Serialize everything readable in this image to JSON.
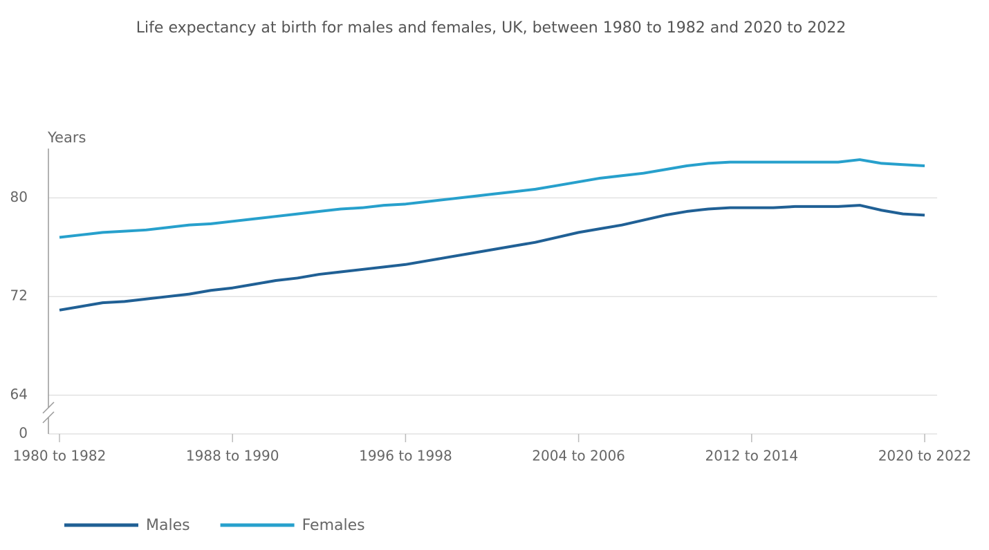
{
  "chart_data": {
    "type": "line",
    "title": "Life expectancy at birth for males and females, UK, between 1980 to 1982 and 2020 to 2022",
    "ylabel": "Years",
    "categories": [
      "1980 to 1982",
      null,
      null,
      null,
      null,
      null,
      null,
      null,
      "1988 to 1990",
      null,
      null,
      null,
      null,
      null,
      null,
      null,
      "1996 to 1998",
      null,
      null,
      null,
      null,
      null,
      null,
      null,
      "2004 to 2006",
      null,
      null,
      null,
      null,
      null,
      null,
      null,
      "2012 to 2014",
      null,
      null,
      null,
      null,
      null,
      null,
      null,
      "2020 to 2022"
    ],
    "series": [
      {
        "name": "Males",
        "color": "#206095",
        "values": [
          70.9,
          71.2,
          71.5,
          71.6,
          71.8,
          72.0,
          72.2,
          72.5,
          72.7,
          73.0,
          73.3,
          73.5,
          73.8,
          74.0,
          74.2,
          74.4,
          74.6,
          74.9,
          75.2,
          75.5,
          75.8,
          76.1,
          76.4,
          76.8,
          77.2,
          77.5,
          77.8,
          78.2,
          78.6,
          78.9,
          79.1,
          79.2,
          79.2,
          79.2,
          79.3,
          79.3,
          79.3,
          79.4,
          79.0,
          78.7,
          78.6
        ]
      },
      {
        "name": "Females",
        "color": "#27a0cc",
        "values": [
          76.8,
          77.0,
          77.2,
          77.3,
          77.4,
          77.6,
          77.8,
          77.9,
          78.1,
          78.3,
          78.5,
          78.7,
          78.9,
          79.1,
          79.2,
          79.4,
          79.5,
          79.7,
          79.9,
          80.1,
          80.3,
          80.5,
          80.7,
          81.0,
          81.3,
          81.6,
          81.8,
          82.0,
          82.3,
          82.6,
          82.8,
          82.9,
          82.9,
          82.9,
          82.9,
          82.9,
          82.9,
          83.1,
          82.8,
          82.7,
          82.6
        ]
      }
    ],
    "ylim": [
      0,
      84
    ],
    "yticks": [
      0,
      64,
      72,
      80
    ],
    "axis_break": [
      0,
      64
    ],
    "grid": true,
    "legend": "bottom-left"
  }
}
